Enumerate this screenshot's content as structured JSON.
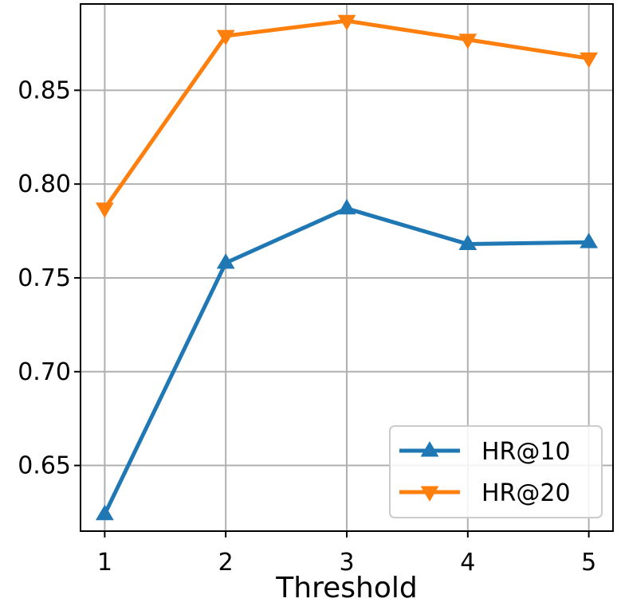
{
  "chart_data": {
    "type": "line",
    "title": "",
    "xlabel": "Threshold",
    "ylabel": "",
    "x": [
      1,
      2,
      3,
      4,
      5
    ],
    "xticks": [
      "1",
      "2",
      "3",
      "4",
      "5"
    ],
    "yticks": [
      "0.65",
      "0.70",
      "0.75",
      "0.80",
      "0.85"
    ],
    "xlim": [
      0.8,
      5.2
    ],
    "ylim": [
      0.615,
      0.896
    ],
    "grid": true,
    "legend_position": "lower-right",
    "series": [
      {
        "name": "HR@10",
        "values": [
          0.624,
          0.758,
          0.787,
          0.768,
          0.769
        ],
        "color": "#1f77b4",
        "marker": "triangle-up"
      },
      {
        "name": "HR@20",
        "values": [
          0.787,
          0.879,
          0.887,
          0.877,
          0.867
        ],
        "color": "#ff7f0e",
        "marker": "triangle-down"
      }
    ]
  }
}
